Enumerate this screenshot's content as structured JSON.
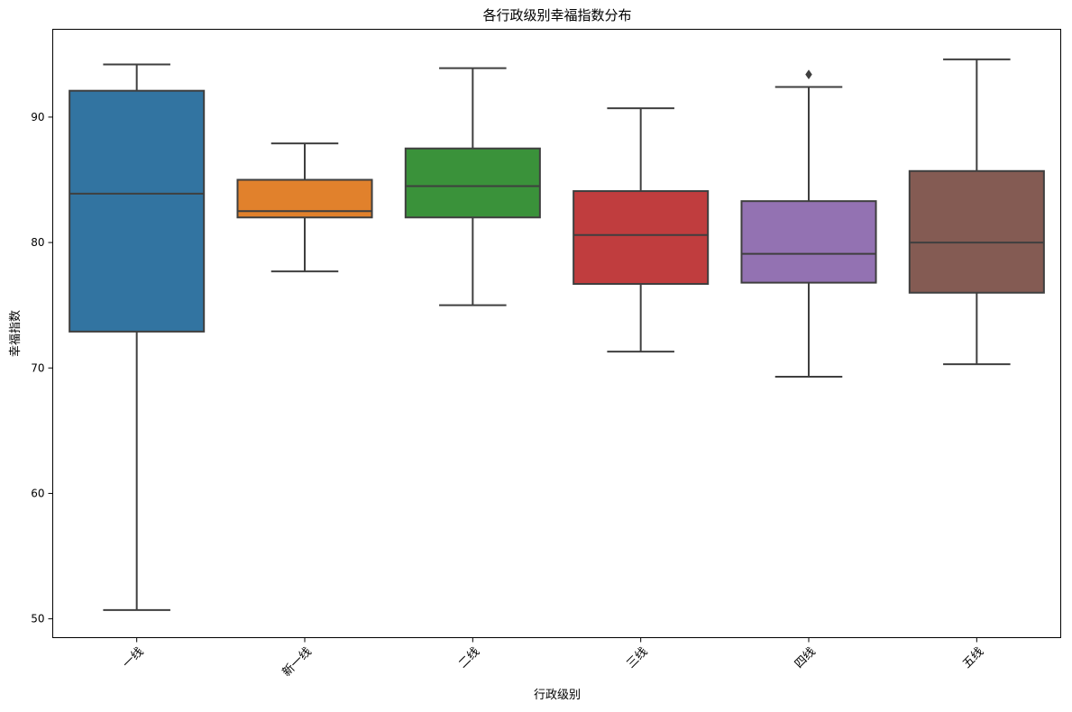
{
  "chart_data": {
    "type": "boxplot",
    "title": "各行政级别幸福指数分布",
    "xlabel": "行政级别",
    "ylabel": "幸福指数",
    "ylim": [
      48.5,
      97
    ],
    "yticks": [
      50,
      60,
      70,
      80,
      90
    ],
    "grid": false,
    "categories": [
      "一线",
      "新一线",
      "二线",
      "三线",
      "四线",
      "五线"
    ],
    "boxes": [
      {
        "category": "一线",
        "whisker_low": 50.7,
        "q1": 72.9,
        "median": 83.9,
        "q3": 92.1,
        "whisker_high": 94.2,
        "outliers": [],
        "color": "#3274a1"
      },
      {
        "category": "新一线",
        "whisker_low": 77.7,
        "q1": 82.0,
        "median": 82.5,
        "q3": 85.0,
        "whisker_high": 87.9,
        "outliers": [],
        "color": "#e1812c"
      },
      {
        "category": "二线",
        "whisker_low": 75.0,
        "q1": 82.0,
        "median": 84.5,
        "q3": 87.5,
        "whisker_high": 93.9,
        "outliers": [],
        "color": "#3a923a"
      },
      {
        "category": "三线",
        "whisker_low": 71.3,
        "q1": 76.7,
        "median": 80.6,
        "q3": 84.1,
        "whisker_high": 90.7,
        "outliers": [],
        "color": "#c03d3e"
      },
      {
        "category": "四线",
        "whisker_low": 69.3,
        "q1": 76.8,
        "median": 79.1,
        "q3": 83.3,
        "whisker_high": 92.4,
        "outliers": [
          93.4
        ],
        "color": "#9372b2"
      },
      {
        "category": "五线",
        "whisker_low": 70.3,
        "q1": 76.0,
        "median": 80.0,
        "q3": 85.7,
        "whisker_high": 94.6,
        "outliers": [],
        "color": "#845b53"
      }
    ],
    "line_color": "#3f3f3f"
  }
}
